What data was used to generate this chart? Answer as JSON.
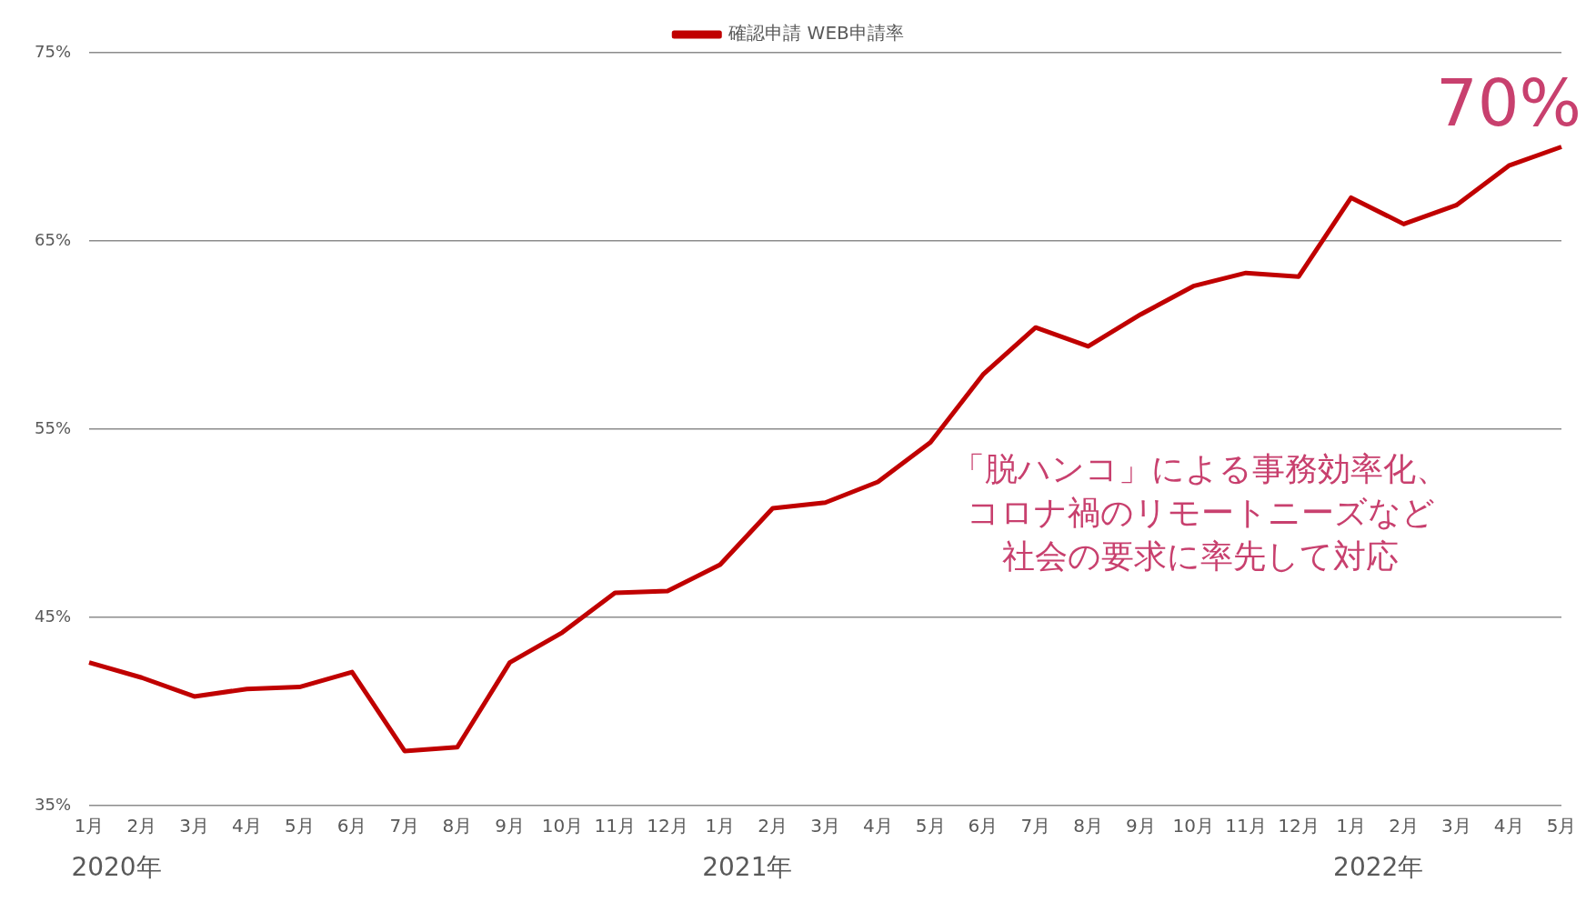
{
  "chart_data": {
    "type": "line",
    "categories": [
      "1月",
      "2月",
      "3月",
      "4月",
      "5月",
      "6月",
      "7月",
      "8月",
      "9月",
      "10月",
      "11月",
      "12月",
      "1月",
      "2月",
      "3月",
      "4月",
      "5月",
      "6月",
      "7月",
      "8月",
      "9月",
      "10月",
      "11月",
      "12月",
      "1月",
      "2月",
      "3月",
      "4月",
      "5月"
    ],
    "series": [
      {
        "name": "確認申請 WEB申請率",
        "color": "#c00000",
        "values": [
          42.6,
          41.8,
          40.8,
          41.2,
          41.3,
          42.1,
          37.9,
          38.1,
          42.6,
          44.2,
          46.3,
          46.4,
          47.8,
          50.8,
          51.1,
          52.2,
          54.3,
          57.9,
          60.4,
          59.4,
          61.1,
          62.6,
          63.3,
          63.1,
          67.3,
          65.9,
          66.9,
          69.0,
          70
        ],
        "value_labels": [
          null,
          null,
          null,
          null,
          null,
          null,
          null,
          null,
          null,
          null,
          null,
          null,
          null,
          null,
          null,
          null,
          null,
          null,
          null,
          null,
          null,
          null,
          null,
          null,
          null,
          null,
          null,
          null,
          "70%"
        ]
      }
    ],
    "ylim": [
      35,
      75
    ],
    "yticks": [
      {
        "value": 35,
        "label": "35%"
      },
      {
        "value": 45,
        "label": "45%"
      },
      {
        "value": 55,
        "label": "55%"
      },
      {
        "value": 65,
        "label": "65%"
      },
      {
        "value": 75,
        "label": "75%"
      }
    ],
    "annotations": [
      "2020年",
      "2021年",
      "2022年",
      "「脱ハンコ」による事務効率化、",
      "コロナ禍のリモートニーズなど",
      "社会の要求に率先して対応"
    ],
    "grid": "y",
    "legend": "top",
    "marker": "none",
    "line_style": "solid"
  }
}
